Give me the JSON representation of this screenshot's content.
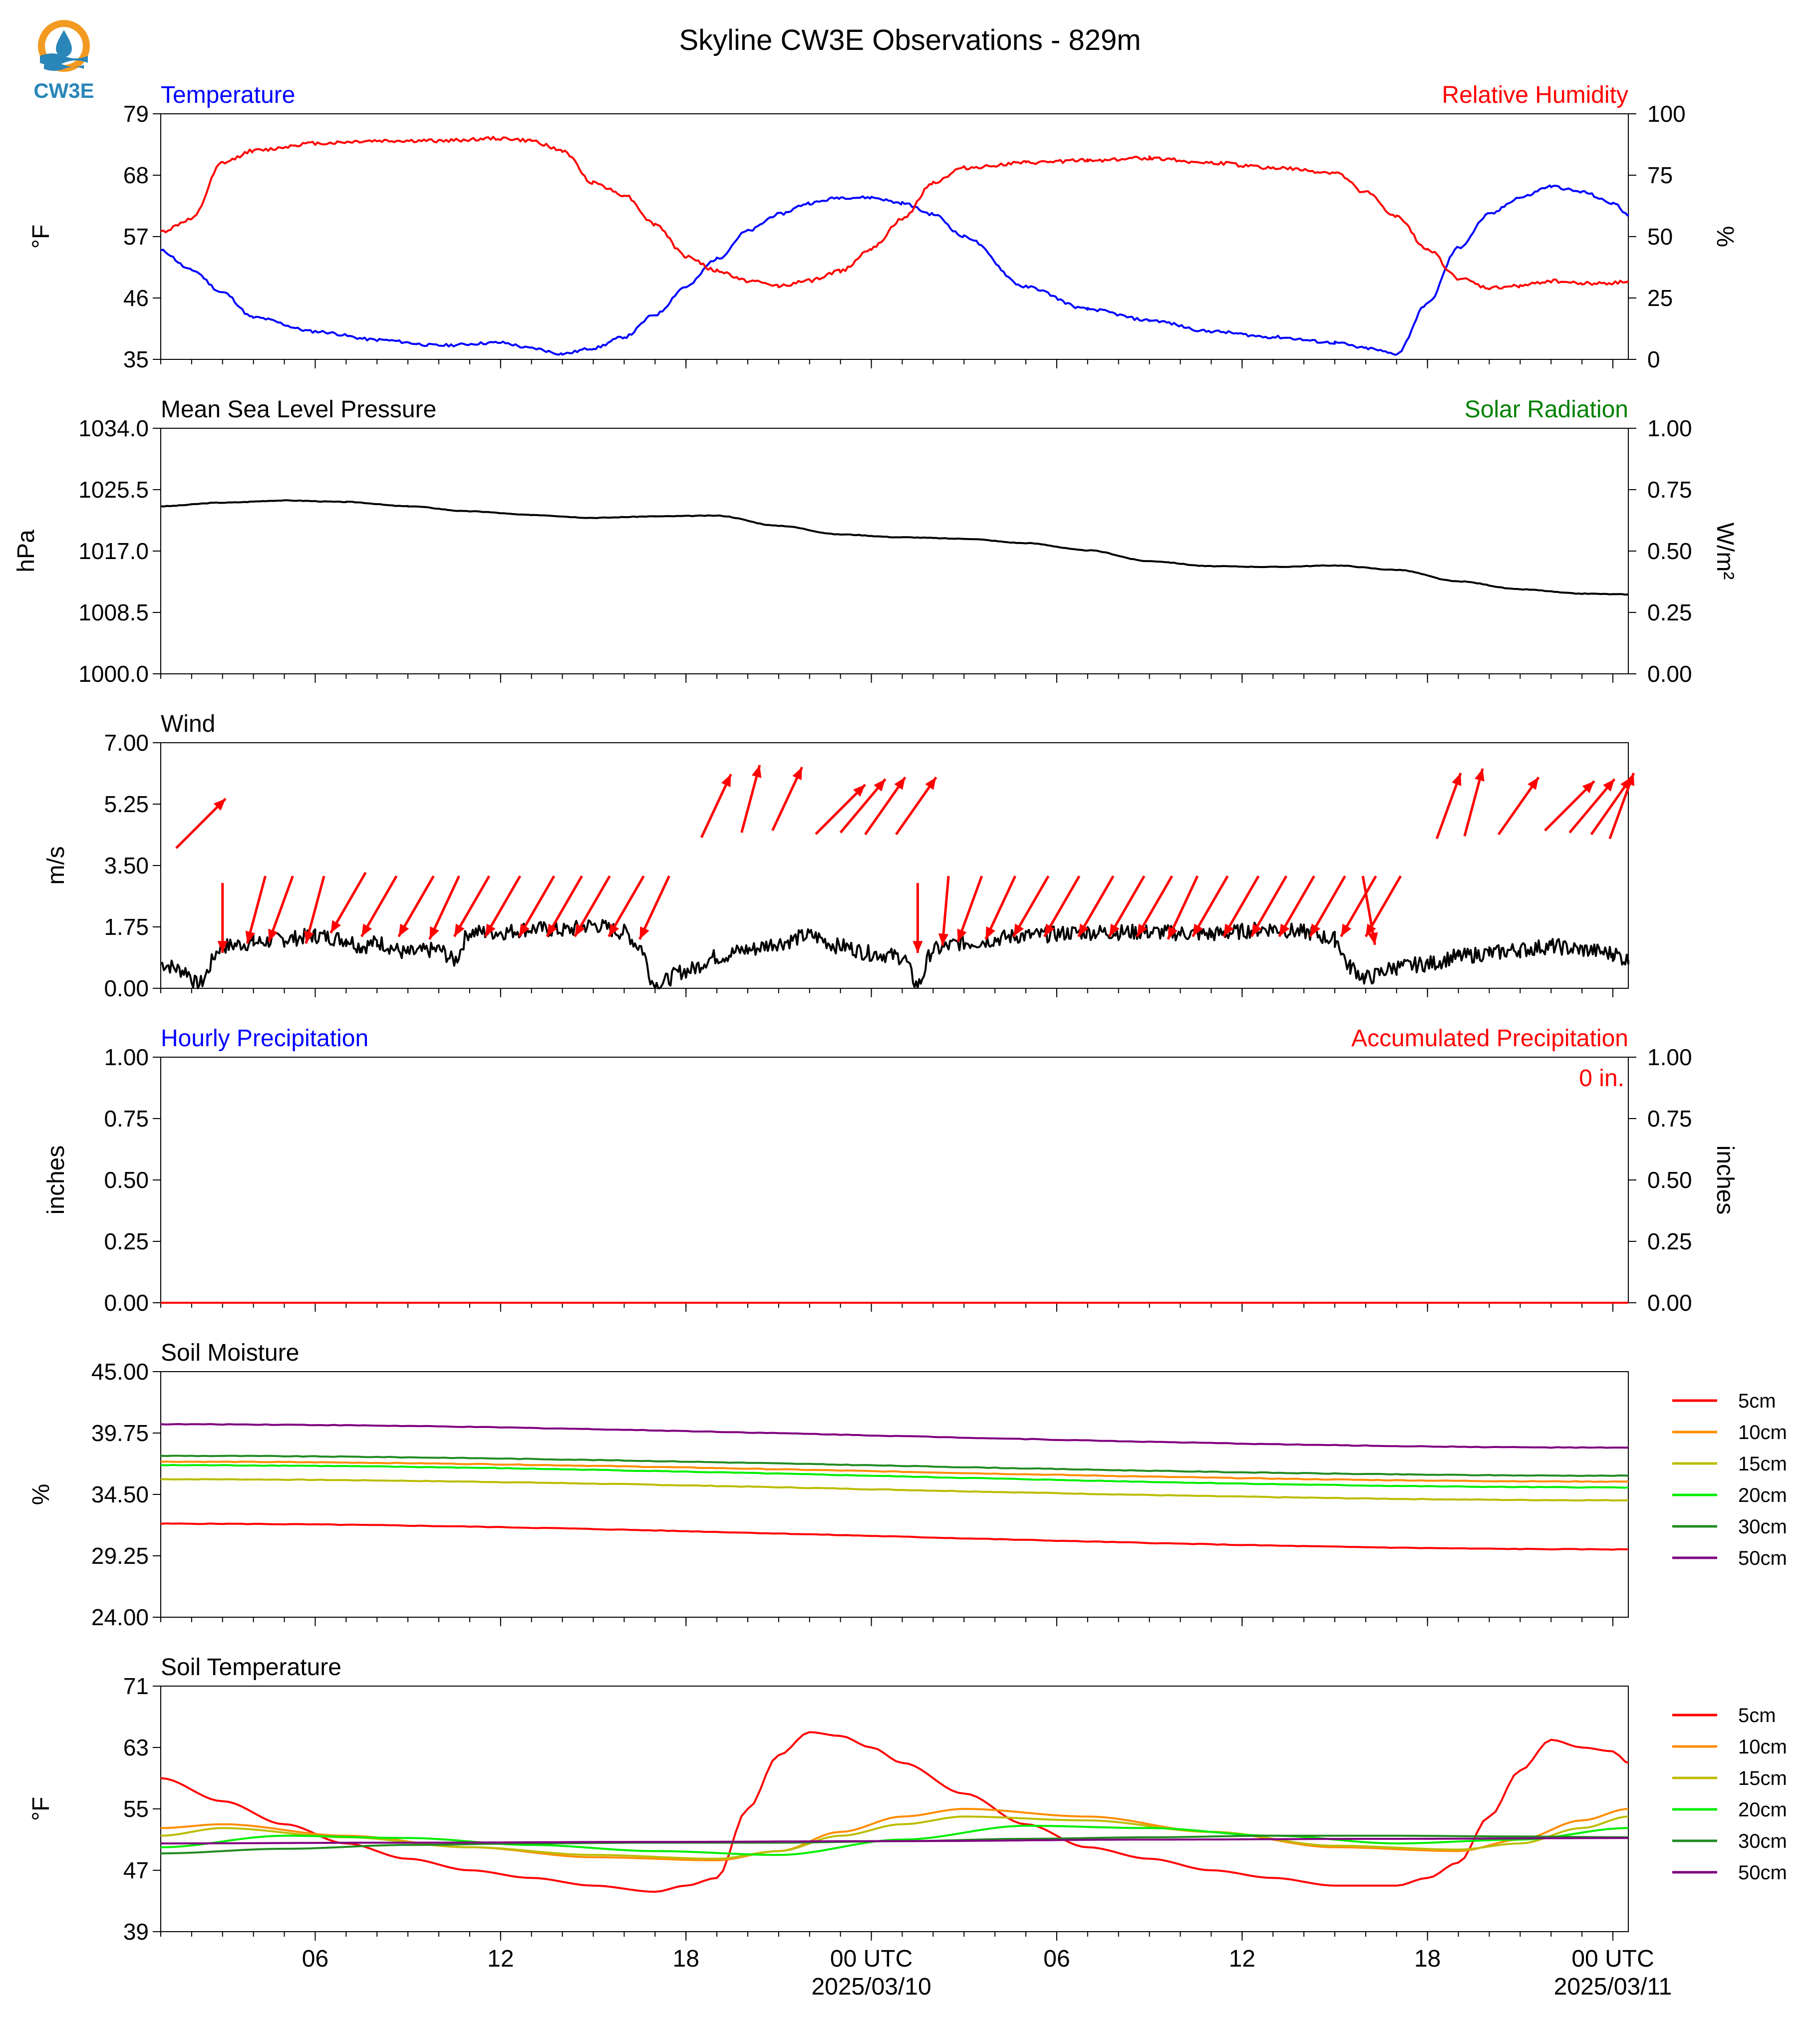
{
  "title": "Skyline CW3E Observations - 829m",
  "logo": {
    "text": "CW3E",
    "icon": "water-drop-sun-logo"
  },
  "colors": {
    "temperature": "#0000ff",
    "humidity": "#ff0000",
    "pressure": "#000000",
    "solar": "#008000",
    "wind": "#000000",
    "wind_arrows": "#ff0000",
    "5cm": "#ff0000",
    "10cm": "#ff8c00",
    "15cm": "#bcbc00",
    "20cm": "#00ee00",
    "30cm": "#228b22",
    "50cm": "#800080"
  },
  "x_axis": {
    "range_hours": [
      0,
      47.5
    ],
    "ticks": [
      {
        "h": 5,
        "label": "06",
        "date": ""
      },
      {
        "h": 11,
        "label": "12",
        "date": ""
      },
      {
        "h": 17,
        "label": "18",
        "date": ""
      },
      {
        "h": 23,
        "label": "00 UTC",
        "date": "2025/03/10"
      },
      {
        "h": 29,
        "label": "06",
        "date": ""
      },
      {
        "h": 35,
        "label": "12",
        "date": ""
      },
      {
        "h": 41,
        "label": "18",
        "date": ""
      },
      {
        "h": 47,
        "label": "00 UTC",
        "date": "2025/03/11"
      }
    ]
  },
  "chart_data": [
    {
      "type": "line",
      "panel": "temperature-humidity",
      "left_title": "Temperature",
      "right_title": "Relative Humidity",
      "ylabel": "°F",
      "ylabel_right": "%",
      "ylim": [
        35,
        79
      ],
      "yticks": [
        "35",
        "46",
        "57",
        "68",
        "79"
      ],
      "ylim_right": [
        0,
        100
      ],
      "yticks_right": [
        "0",
        "25",
        "50",
        "75",
        "100"
      ],
      "series": [
        {
          "key": "temp",
          "axis": "left",
          "x": [
            0,
            1,
            2,
            3,
            5,
            7,
            9,
            11,
            12,
            13,
            14,
            15,
            16,
            17,
            18,
            19,
            20,
            21,
            22,
            23,
            24,
            25,
            26,
            28,
            30,
            32,
            34,
            36,
            38,
            39,
            40,
            41,
            42,
            43,
            44,
            45,
            46,
            47,
            47.5
          ],
          "y": [
            54.5,
            51,
            47,
            42.5,
            40,
            38.5,
            37.5,
            38,
            37,
            36,
            37,
            39,
            43,
            48,
            53,
            58,
            61,
            63,
            64,
            64,
            63,
            61,
            57,
            48,
            44,
            42,
            40,
            39,
            38,
            37,
            36,
            45,
            55,
            61,
            64,
            66,
            65,
            63,
            61
          ]
        },
        {
          "key": "rh",
          "axis": "right",
          "x": [
            0,
            1,
            2,
            3,
            5,
            7,
            9,
            11,
            12,
            13,
            14,
            15,
            16,
            17,
            18,
            19,
            20,
            21,
            22,
            23,
            24,
            25,
            26,
            28,
            30,
            32,
            34,
            36,
            38,
            39,
            40,
            41,
            42,
            43,
            44,
            45,
            46,
            47,
            47.5
          ],
          "y": [
            52,
            57,
            80,
            85,
            88,
            89,
            89,
            90,
            89,
            85,
            72,
            67,
            55,
            42,
            36,
            32,
            30,
            32,
            36,
            45,
            57,
            72,
            78,
            80,
            81,
            82,
            80,
            78,
            76,
            68,
            58,
            45,
            33,
            29,
            30,
            32,
            31,
            31,
            32
          ]
        }
      ]
    },
    {
      "type": "line",
      "panel": "pressure-solar",
      "left_title": "Mean Sea Level Pressure",
      "right_title": "Solar Radiation",
      "ylabel": "hPa",
      "ylabel_right": "W/m²",
      "ylim": [
        1000,
        1034
      ],
      "yticks": [
        "1000.0",
        "1008.5",
        "1017.0",
        "1025.5",
        "1034.0"
      ],
      "ylim_right": [
        0,
        1
      ],
      "yticks_right": [
        "0.00",
        "0.25",
        "0.50",
        "0.75",
        "1.00"
      ],
      "series": [
        {
          "key": "pressure",
          "axis": "left",
          "x": [
            0,
            2,
            4,
            6,
            8,
            10,
            12,
            14,
            16,
            18,
            20,
            22,
            24,
            26,
            28,
            30,
            32,
            34,
            36,
            38,
            40,
            42,
            44,
            46,
            47.5
          ],
          "y": [
            1023.2,
            1023.7,
            1024.0,
            1023.8,
            1023.2,
            1022.5,
            1022.0,
            1021.6,
            1021.8,
            1021.9,
            1020.5,
            1019.3,
            1018.9,
            1018.7,
            1018.1,
            1017.1,
            1015.6,
            1014.9,
            1014.8,
            1015.0,
            1014.4,
            1012.8,
            1011.7,
            1011.1,
            1011.0
          ]
        }
      ]
    },
    {
      "type": "line",
      "panel": "wind",
      "left_title": "Wind",
      "ylabel": "m/s",
      "ylim": [
        0,
        7
      ],
      "yticks": [
        "0.00",
        "1.75",
        "3.50",
        "5.25",
        "7.00"
      ],
      "series": [
        {
          "key": "wind_speed",
          "x": [
            0,
            0.8,
            1.2,
            2,
            3,
            4,
            5,
            6,
            6.5,
            7,
            8,
            9,
            9.5,
            10,
            11,
            12,
            13,
            14,
            15,
            15.5,
            16,
            17,
            18,
            19,
            20,
            21,
            22,
            23,
            24,
            24.5,
            25,
            26,
            28,
            30,
            32,
            34,
            36,
            37,
            38,
            38.5,
            39,
            40,
            41,
            42,
            43,
            44,
            45,
            46,
            47,
            47.5
          ],
          "y": [
            0.7,
            0.5,
            0.1,
            1.2,
            1.3,
            1.4,
            1.5,
            1.4,
            1.2,
            1.3,
            1.0,
            1.1,
            0.8,
            1.6,
            1.6,
            1.7,
            1.65,
            1.8,
            1.6,
            1.2,
            0.1,
            0.5,
            0.9,
            1.1,
            1.3,
            1.5,
            1.2,
            1.0,
            0.9,
            0.1,
            1.1,
            1.3,
            1.5,
            1.6,
            1.6,
            1.55,
            1.7,
            1.6,
            1.4,
            0.6,
            0.3,
            0.6,
            0.7,
            0.9,
            1.0,
            1.1,
            1.2,
            1.1,
            1.0,
            0.8
          ]
        }
      ],
      "arrows": [
        {
          "x": 0.5,
          "y": 4.7,
          "dir": 45
        },
        {
          "x": 2,
          "y": 3.0,
          "dir": 0
        },
        {
          "x": 2.8,
          "y": 3.2,
          "dir": 15
        },
        {
          "x": 3.5,
          "y": 3.2,
          "dir": 20
        },
        {
          "x": 4.7,
          "y": 3.2,
          "dir": 15
        },
        {
          "x": 5.5,
          "y": 3.3,
          "dir": 30
        },
        {
          "x": 6.5,
          "y": 3.2,
          "dir": 30
        },
        {
          "x": 7.7,
          "y": 3.2,
          "dir": 30
        },
        {
          "x": 8.7,
          "y": 3.2,
          "dir": 25
        },
        {
          "x": 9.5,
          "y": 3.2,
          "dir": 30
        },
        {
          "x": 10.5,
          "y": 3.2,
          "dir": 30
        },
        {
          "x": 11.6,
          "y": 3.2,
          "dir": 30
        },
        {
          "x": 12.5,
          "y": 3.2,
          "dir": 30
        },
        {
          "x": 13.4,
          "y": 3.2,
          "dir": 30
        },
        {
          "x": 14.5,
          "y": 3.2,
          "dir": 30
        },
        {
          "x": 15.5,
          "y": 3.2,
          "dir": 25
        },
        {
          "x": 17.5,
          "y": 5.2,
          "dir": 25
        },
        {
          "x": 18.8,
          "y": 5.4,
          "dir": 15
        },
        {
          "x": 19.8,
          "y": 5.4,
          "dir": 25
        },
        {
          "x": 21.2,
          "y": 5.1,
          "dir": 45
        },
        {
          "x": 22.0,
          "y": 5.2,
          "dir": 40
        },
        {
          "x": 22.8,
          "y": 5.2,
          "dir": 35
        },
        {
          "x": 23.8,
          "y": 5.2,
          "dir": 35
        },
        {
          "x": 24.5,
          "y": 3.0,
          "dir": 0
        },
        {
          "x": 25.3,
          "y": 3.2,
          "dir": 5
        },
        {
          "x": 25.8,
          "y": 3.2,
          "dir": 20
        },
        {
          "x": 26.7,
          "y": 3.2,
          "dir": 25
        },
        {
          "x": 27.6,
          "y": 3.2,
          "dir": 30
        },
        {
          "x": 28.6,
          "y": 3.2,
          "dir": 30
        },
        {
          "x": 29.7,
          "y": 3.2,
          "dir": 30
        },
        {
          "x": 30.7,
          "y": 3.2,
          "dir": 30
        },
        {
          "x": 31.6,
          "y": 3.2,
          "dir": 30
        },
        {
          "x": 32.6,
          "y": 3.2,
          "dir": 25
        },
        {
          "x": 33.4,
          "y": 3.2,
          "dir": 30
        },
        {
          "x": 34.4,
          "y": 3.2,
          "dir": 30
        },
        {
          "x": 35.3,
          "y": 3.2,
          "dir": 30
        },
        {
          "x": 36.2,
          "y": 3.2,
          "dir": 30
        },
        {
          "x": 37.2,
          "y": 3.2,
          "dir": 30
        },
        {
          "x": 38.2,
          "y": 3.2,
          "dir": 30
        },
        {
          "x": 39.0,
          "y": 3.2,
          "dir": 30
        },
        {
          "x": 39.3,
          "y": 3.2,
          "dir": -10
        },
        {
          "x": 41.3,
          "y": 5.2,
          "dir": 20
        },
        {
          "x": 42.2,
          "y": 5.3,
          "dir": 15
        },
        {
          "x": 43.3,
          "y": 5.2,
          "dir": 35
        },
        {
          "x": 44.8,
          "y": 5.2,
          "dir": 45
        },
        {
          "x": 45.6,
          "y": 5.2,
          "dir": 40
        },
        {
          "x": 46.3,
          "y": 5.2,
          "dir": 35
        },
        {
          "x": 46.9,
          "y": 5.2,
          "dir": 20
        }
      ]
    },
    {
      "type": "line",
      "panel": "precipitation",
      "left_title": "Hourly Precipitation",
      "right_title": "Accumulated Precipitation",
      "annotation": "0 in.",
      "ylabel": "inches",
      "ylabel_right": "inches",
      "ylim": [
        0,
        1
      ],
      "yticks": [
        "0.00",
        "0.25",
        "0.50",
        "0.75",
        "1.00"
      ],
      "ylim_right": [
        0,
        1
      ],
      "yticks_right": [
        "0.00",
        "0.25",
        "0.50",
        "0.75",
        "1.00"
      ],
      "series": [
        {
          "key": "precip_hourly",
          "axis": "left",
          "x": [
            0,
            47.5
          ],
          "y": [
            0,
            0
          ]
        },
        {
          "key": "precip_accum",
          "axis": "right",
          "x": [
            0,
            47.5
          ],
          "y": [
            0,
            0
          ]
        }
      ]
    },
    {
      "type": "line",
      "panel": "soil-moisture",
      "left_title": "Soil Moisture",
      "ylabel": "%",
      "ylim": [
        24,
        45
      ],
      "yticks": [
        "24.00",
        "29.25",
        "34.50",
        "39.75",
        "45.00"
      ],
      "legend": [
        "5cm",
        "10cm",
        "15cm",
        "20cm",
        "30cm",
        "50cm"
      ],
      "series": [
        {
          "key": "5cm",
          "name": "5cm",
          "x": [
            0,
            47.5
          ],
          "y": [
            32.0,
            29.8
          ]
        },
        {
          "key": "10cm",
          "name": "10cm",
          "x": [
            0,
            47.5
          ],
          "y": [
            37.3,
            35.6
          ]
        },
        {
          "key": "15cm",
          "name": "15cm",
          "x": [
            0,
            47.5
          ],
          "y": [
            35.8,
            34.0
          ]
        },
        {
          "key": "20cm",
          "name": "20cm",
          "x": [
            0,
            47.5
          ],
          "y": [
            37.0,
            35.1
          ]
        },
        {
          "key": "30cm",
          "name": "30cm",
          "x": [
            0,
            47.5
          ],
          "y": [
            37.8,
            36.1
          ]
        },
        {
          "key": "50cm",
          "name": "50cm",
          "x": [
            0,
            47.5
          ],
          "y": [
            40.5,
            38.5
          ]
        }
      ]
    },
    {
      "type": "line",
      "panel": "soil-temperature",
      "left_title": "Soil Temperature",
      "ylabel": "°F",
      "ylim": [
        39,
        71
      ],
      "yticks": [
        "39",
        "47",
        "55",
        "63",
        "71"
      ],
      "legend": [
        "5cm",
        "10cm",
        "15cm",
        "20cm",
        "30cm",
        "50cm"
      ],
      "series": [
        {
          "key": "5cm",
          "name": "5cm",
          "x": [
            0,
            2,
            4,
            6,
            8,
            10,
            12,
            14,
            16,
            17,
            18,
            19,
            20,
            21,
            22,
            23,
            24,
            26,
            28,
            30,
            32,
            34,
            36,
            38,
            40,
            41,
            42,
            43,
            44,
            45,
            46,
            47,
            47.5
          ],
          "y": [
            59,
            56,
            53,
            50.5,
            48.5,
            47,
            46,
            45,
            44.2,
            45,
            46,
            55,
            62,
            65,
            64.5,
            63,
            61,
            57,
            53,
            50,
            48.5,
            47,
            46,
            45,
            45,
            46,
            48,
            54,
            60,
            64,
            63,
            62.5,
            61
          ]
        },
        {
          "key": "10cm",
          "name": "10cm",
          "x": [
            0,
            2,
            6,
            10,
            14,
            18,
            20,
            22,
            24,
            26,
            30,
            34,
            38,
            42,
            44,
            46,
            47.5
          ],
          "y": [
            52.5,
            53,
            51.5,
            50,
            48.7,
            48.3,
            49.5,
            52,
            54,
            55,
            54,
            52,
            50,
            49.5,
            51,
            53.5,
            55
          ]
        },
        {
          "key": "15cm",
          "name": "15cm",
          "x": [
            0,
            2,
            6,
            10,
            14,
            18,
            20,
            22,
            24,
            26,
            30,
            34,
            38,
            42,
            44,
            46,
            47.5
          ],
          "y": [
            51.5,
            52.5,
            51.3,
            50,
            49,
            48.5,
            49.5,
            51.5,
            53,
            54,
            53.5,
            52,
            50.2,
            49.7,
            50.5,
            52.5,
            54
          ]
        },
        {
          "key": "20cm",
          "name": "20cm",
          "x": [
            0,
            4,
            8,
            12,
            16,
            20,
            24,
            28,
            32,
            36,
            40,
            44,
            47.5
          ],
          "y": [
            50,
            51.5,
            51.2,
            50.3,
            49.5,
            49,
            51,
            52.8,
            52.5,
            51.5,
            50.5,
            51,
            52.5
          ]
        },
        {
          "key": "30cm",
          "name": "30cm",
          "x": [
            0,
            4,
            8,
            12,
            16,
            20,
            24,
            28,
            32,
            36,
            40,
            44,
            47.5
          ],
          "y": [
            49.2,
            49.8,
            50.3,
            50.5,
            50.6,
            50.6,
            50.8,
            51.1,
            51.3,
            51.5,
            51.5,
            51.4,
            51.3
          ]
        },
        {
          "key": "50cm",
          "name": "50cm",
          "x": [
            0,
            8,
            16,
            24,
            32,
            40,
            47.5
          ],
          "y": [
            50.5,
            50.6,
            50.7,
            50.8,
            51,
            51.1,
            51.2
          ]
        }
      ]
    }
  ]
}
